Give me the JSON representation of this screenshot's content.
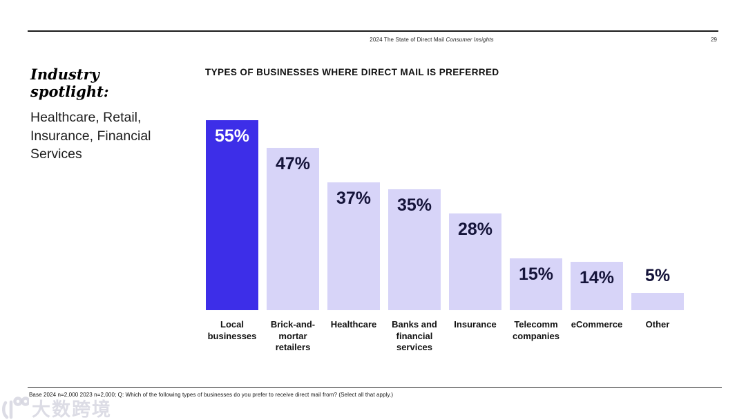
{
  "header": {
    "report_title_regular": "2024 The State of Direct Mail ",
    "report_title_italic": "Consumer Insights",
    "page_number": "29"
  },
  "spotlight": {
    "title": "Industry spotlight:",
    "subtitle": "Healthcare, Retail, Insurance, Financial Services"
  },
  "chart_data": {
    "type": "bar",
    "title": "TYPES OF BUSINESSES WHERE DIRECT MAIL IS PREFERRED",
    "categories": [
      "Local businesses",
      "Brick-and-mortar retailers",
      "Healthcare",
      "Banks and financial services",
      "Insurance",
      "Telecomm companies",
      "eCommerce",
      "Other"
    ],
    "values": [
      55,
      47,
      37,
      35,
      28,
      15,
      14,
      5
    ],
    "value_labels": [
      "55%",
      "47%",
      "37%",
      "35%",
      "28%",
      "15%",
      "14%",
      "5%"
    ],
    "highlight_index": 0,
    "xlabel": "",
    "ylabel": "",
    "ylim": [
      0,
      60
    ],
    "grid": false,
    "legend": null,
    "colors": {
      "highlight_bar": "#3D2EE8",
      "default_bar": "#D7D4F8",
      "label_on_highlight": "#FFFFFF",
      "label_on_default": "#15143A"
    }
  },
  "footer": {
    "note": "Base 2024 n=2,000 2023 n=2,000; Q: Which of the following types of businesses do you prefer to receive direct mail from? (Select all that apply.)"
  },
  "watermark": {
    "text": "大数跨境"
  }
}
